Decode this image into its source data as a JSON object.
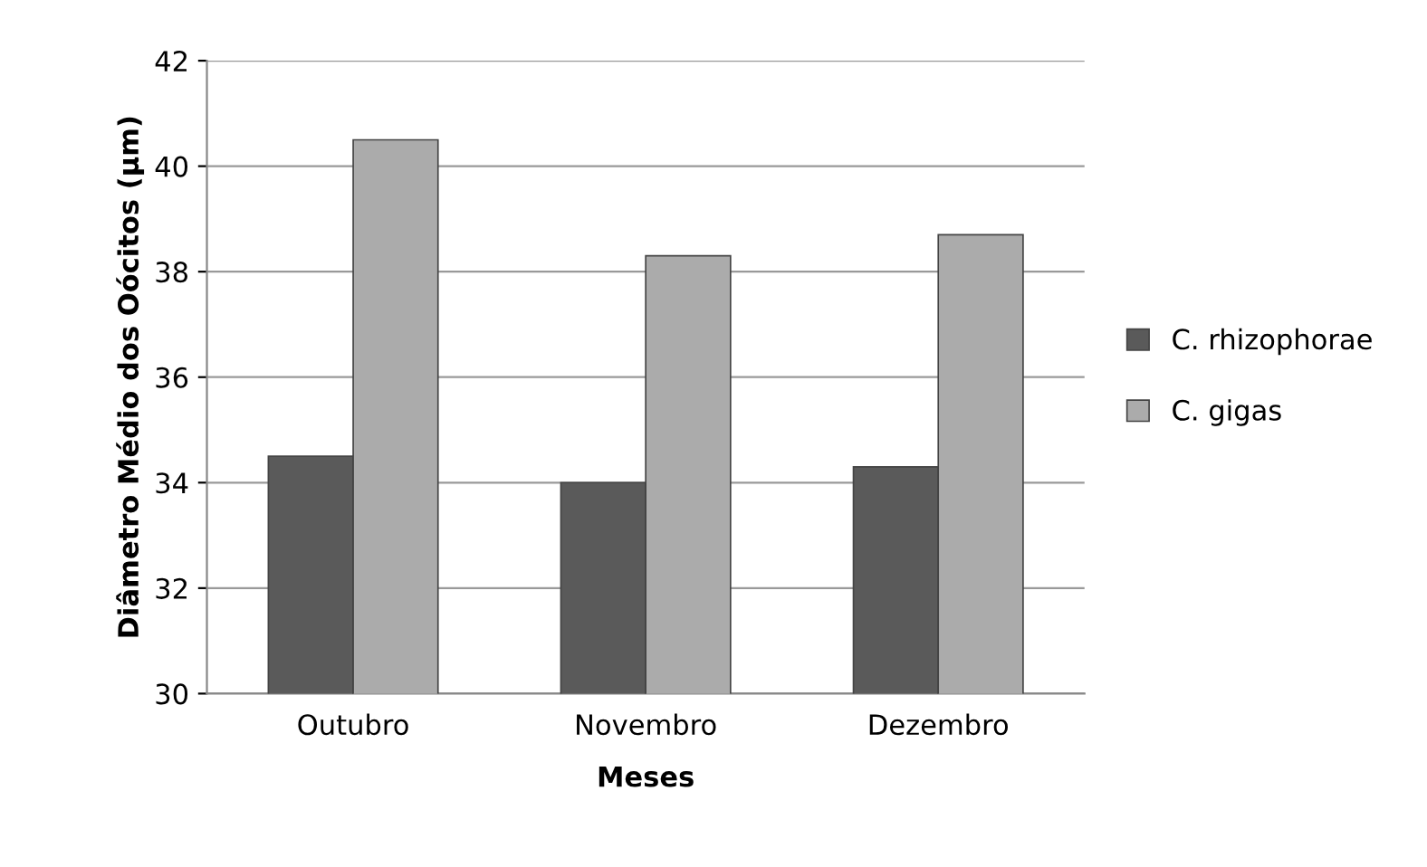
{
  "chart_data": {
    "type": "bar",
    "xlabel": "Meses",
    "ylabel": "Diâmetro Médio dos Oócitos (µm)",
    "categories": [
      "Outubro",
      "Novembro",
      "Dezembro"
    ],
    "series": [
      {
        "name": "C. rhizophorae",
        "color": "#5a5a5a",
        "values": [
          34.5,
          34.0,
          34.3
        ]
      },
      {
        "name": "C. gigas",
        "color": "#ababab",
        "values": [
          40.5,
          38.3,
          38.7
        ]
      }
    ],
    "ylim": [
      30,
      42
    ],
    "yticks": [
      30,
      32,
      34,
      36,
      38,
      40,
      42
    ],
    "grid": "y",
    "legend": "right"
  }
}
